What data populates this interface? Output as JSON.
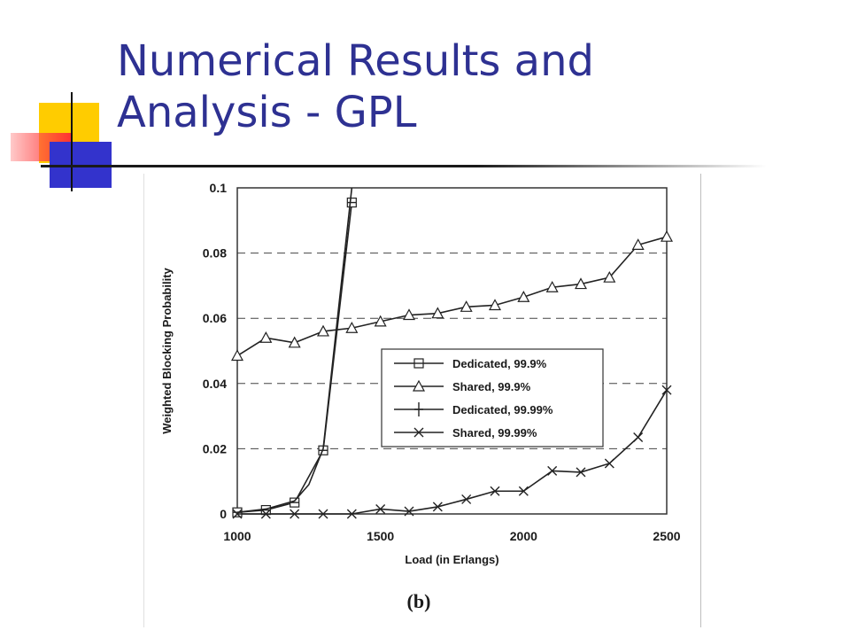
{
  "slide": {
    "title_line1": "Numerical Results and",
    "title_line2": "Analysis - GPL"
  },
  "colors": {
    "title": "#2e3192",
    "deco_yellow": "#ffcc00",
    "deco_red": "#ff3333",
    "deco_blue": "#3333cc"
  },
  "chart_data": {
    "type": "line",
    "xlabel": "Load (in Erlangs)",
    "ylabel": "Weighted Blocking Probability",
    "xlim": [
      1000,
      2500
    ],
    "ylim": [
      0,
      0.1
    ],
    "x_ticks": [
      1000,
      1500,
      2000,
      2500
    ],
    "x_tick_labels": [
      "1000",
      "1500",
      "2000",
      "2500"
    ],
    "y_ticks": [
      0,
      0.02,
      0.04,
      0.06,
      0.08,
      0.1
    ],
    "y_tick_labels": [
      "0",
      "0.02",
      "0.04",
      "0.06",
      "0.08",
      "0.1"
    ],
    "grid": "horizontal dashed",
    "legend_position": "center-right",
    "sublabel": "(b)",
    "series": [
      {
        "name": "Dedicated, 99.9%",
        "marker": "square",
        "x": [
          1000,
          1100,
          1200,
          1300,
          1400
        ],
        "y": [
          0.0005,
          0.0012,
          0.0035,
          0.0195,
          0.0955
        ]
      },
      {
        "name": "Shared, 99.9%",
        "marker": "triangle",
        "x": [
          1000,
          1100,
          1200,
          1300,
          1400,
          1500,
          1600,
          1700,
          1800,
          1900,
          2000,
          2100,
          2200,
          2300,
          2400,
          2500
        ],
        "y": [
          0.0485,
          0.054,
          0.0525,
          0.056,
          0.057,
          0.059,
          0.061,
          0.0615,
          0.0635,
          0.064,
          0.0665,
          0.0695,
          0.0705,
          0.0725,
          0.0825,
          0.085
        ]
      },
      {
        "name": "Dedicated, 99.99%",
        "marker": "plus",
        "x": [
          1000,
          1100,
          1200,
          1250,
          1300,
          1350,
          1400
        ],
        "y": [
          0.0005,
          0.0015,
          0.004,
          0.009,
          0.02,
          0.06,
          0.1
        ]
      },
      {
        "name": "Shared, 99.99%",
        "marker": "x",
        "x": [
          1000,
          1100,
          1200,
          1300,
          1400,
          1500,
          1600,
          1700,
          1800,
          1900,
          2000,
          2100,
          2200,
          2300,
          2400,
          2500
        ],
        "y": [
          0,
          0,
          0,
          0,
          0,
          0.0015,
          0.0008,
          0.0022,
          0.0045,
          0.007,
          0.007,
          0.0132,
          0.0128,
          0.0155,
          0.0235,
          0.038
        ]
      }
    ]
  }
}
